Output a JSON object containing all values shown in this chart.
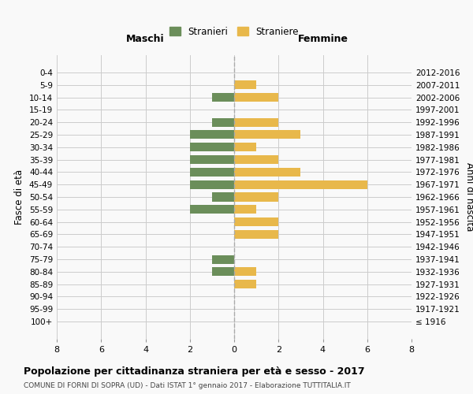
{
  "age_groups": [
    "100+",
    "95-99",
    "90-94",
    "85-89",
    "80-84",
    "75-79",
    "70-74",
    "65-69",
    "60-64",
    "55-59",
    "50-54",
    "45-49",
    "40-44",
    "35-39",
    "30-34",
    "25-29",
    "20-24",
    "15-19",
    "10-14",
    "5-9",
    "0-4"
  ],
  "birth_years": [
    "≤ 1916",
    "1917-1921",
    "1922-1926",
    "1927-1931",
    "1932-1936",
    "1937-1941",
    "1942-1946",
    "1947-1951",
    "1952-1956",
    "1957-1961",
    "1962-1966",
    "1967-1971",
    "1972-1976",
    "1977-1981",
    "1982-1986",
    "1987-1991",
    "1992-1996",
    "1997-2001",
    "2002-2006",
    "2007-2011",
    "2012-2016"
  ],
  "maschi": [
    0,
    0,
    0,
    0,
    1,
    1,
    0,
    0,
    0,
    2,
    1,
    2,
    2,
    2,
    2,
    2,
    1,
    0,
    1,
    0,
    0
  ],
  "femmine": [
    0,
    0,
    0,
    1,
    1,
    0,
    0,
    2,
    2,
    1,
    2,
    6,
    3,
    2,
    1,
    3,
    2,
    0,
    2,
    1,
    0
  ],
  "maschi_color": "#6b8e5a",
  "femmine_color": "#e8b84b",
  "title": "Popolazione per cittadinanza straniera per età e sesso - 2017",
  "subtitle": "COMUNE DI FORNI DI SOPRA (UD) - Dati ISTAT 1° gennaio 2017 - Elaborazione TUTTITALIA.IT",
  "left_header": "Maschi",
  "right_header": "Femmine",
  "right_axis_label": "Anni di nascita",
  "left_axis_label": "Fasce di età",
  "legend_maschi": "Stranieri",
  "legend_femmine": "Straniere",
  "xlim": 8,
  "bg_color": "#f9f9f9",
  "grid_color": "#cccccc",
  "dashed_line_color": "#aaaaaa"
}
